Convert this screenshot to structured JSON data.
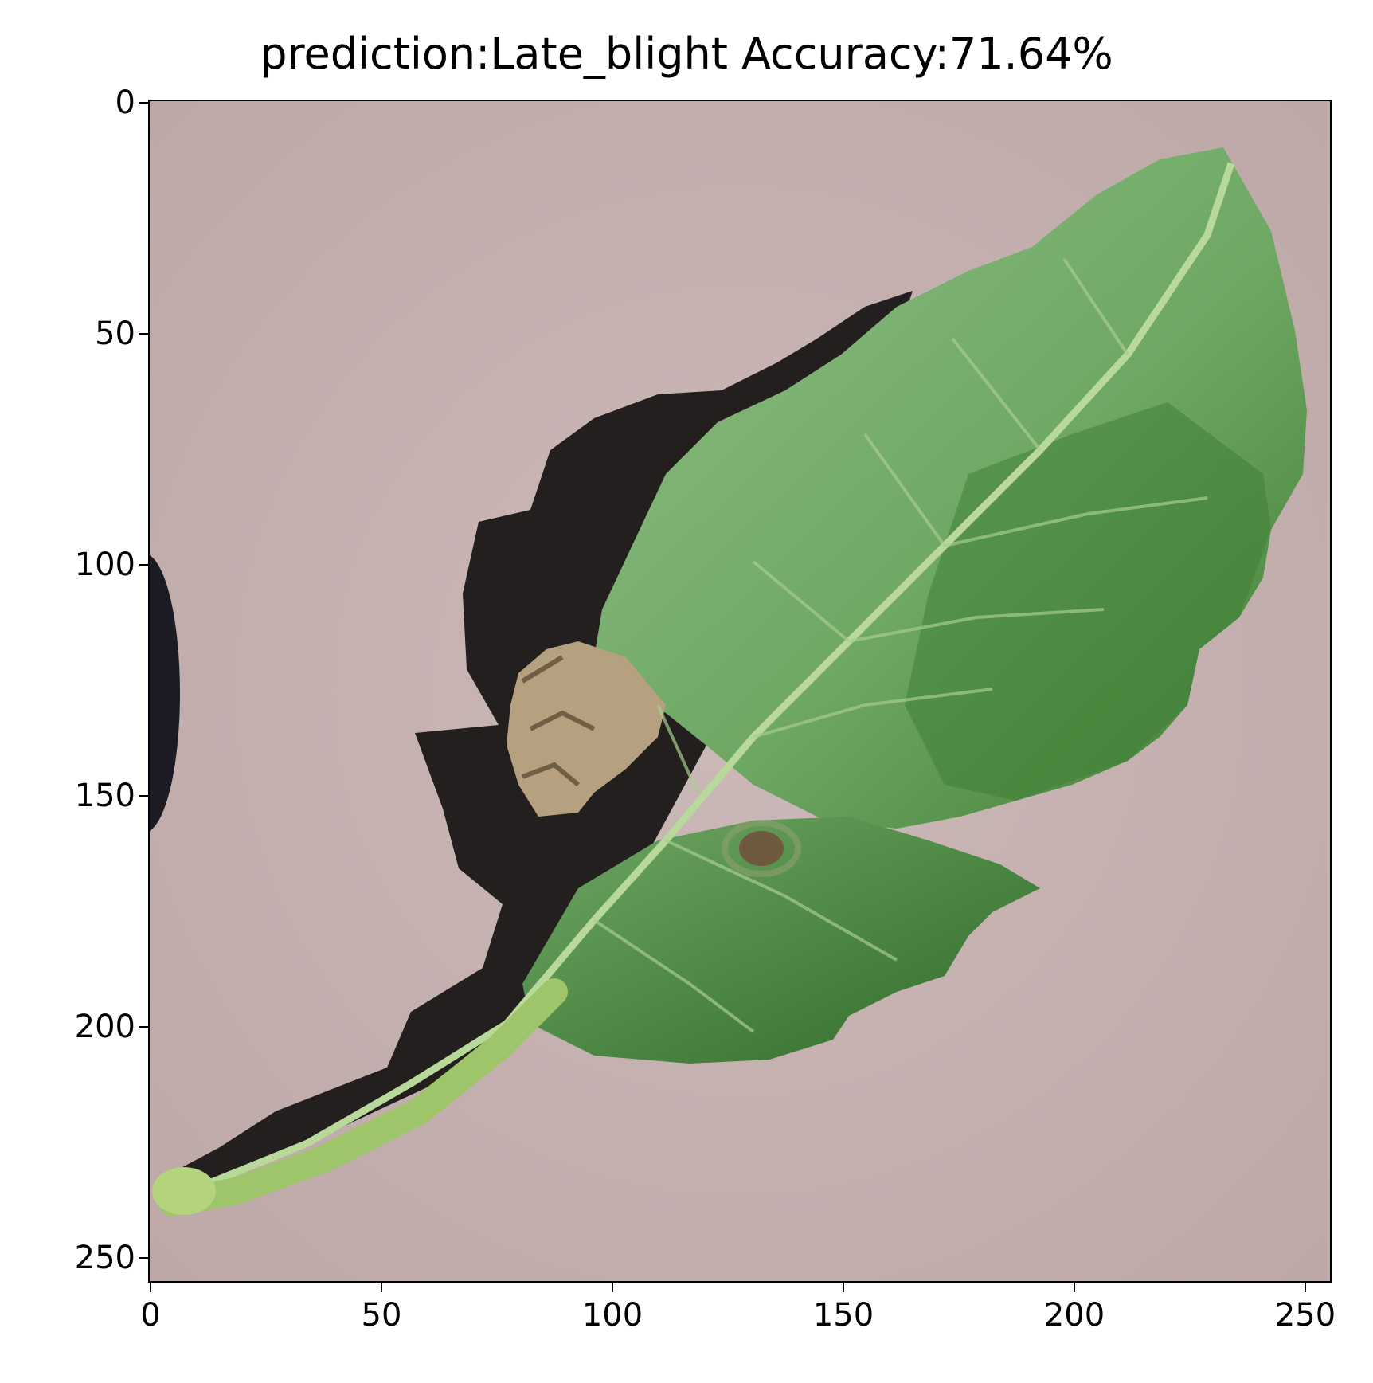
{
  "title": "prediction:Late_blight Accuracy:71.64%",
  "axes": {
    "x_ticks": [
      "0",
      "50",
      "100",
      "150",
      "200",
      "250"
    ],
    "y_ticks": [
      "0",
      "50",
      "100",
      "150",
      "200",
      "250"
    ]
  },
  "image": {
    "subject": "potato leaf with brown late blight lesion on pink background",
    "colors": {
      "background": "#c7b3b2",
      "leaf_light": "#86b47e",
      "leaf_dark": "#3e7a33",
      "shadow": "#23201f",
      "lesion": "#b9a584",
      "stem": "#a9c973"
    }
  }
}
